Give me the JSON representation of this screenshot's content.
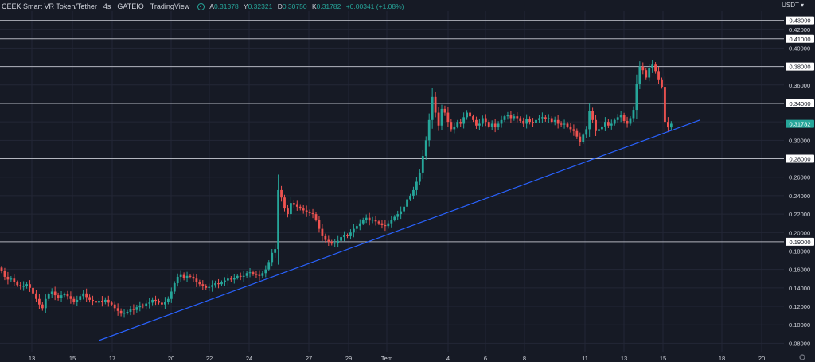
{
  "header": {
    "symbol": "CEEK Smart VR Token/Tether",
    "interval": "4s",
    "exchange": "GATEIO",
    "source": "TradingView",
    "open_label": "A",
    "open_value": "0.31378",
    "high_label": "Y",
    "high_value": "0.32321",
    "low_label": "D",
    "low_value": "0.30750",
    "close_label": "K",
    "close_value": "0.31782",
    "change": "+0.00341 (+1.08%)"
  },
  "currency_selector": "USDT ▾",
  "colors": {
    "background": "#161a25",
    "up": "#26a69a",
    "down": "#ef5350",
    "trendline": "#2962ff",
    "hline": "#b2b5be",
    "grid": "#232736",
    "text": "#d1d4dc"
  },
  "chart_data": {
    "type": "candlestick",
    "ylim": [
      0.07,
      0.44
    ],
    "y_ticks": [
      "0.08000",
      "0.10000",
      "0.12000",
      "0.14000",
      "0.16000",
      "0.18000",
      "0.20000",
      "0.22000",
      "0.24000",
      "0.26000",
      "0.28000",
      "0.30000",
      "0.32000",
      "0.34000",
      "0.36000",
      "0.38000",
      "0.40000",
      "0.42000"
    ],
    "x_ticks": [
      "13",
      "15",
      "17",
      "20",
      "22",
      "24",
      "27",
      "29",
      "Tem",
      "4",
      "6",
      "8",
      "11",
      "13",
      "15",
      "18",
      "20"
    ],
    "price_levels": [
      {
        "label": "0.43000",
        "value": 0.43
      },
      {
        "label": "0.41000",
        "value": 0.41
      },
      {
        "label": "0.38000",
        "value": 0.38
      },
      {
        "label": "0.34000",
        "value": 0.34
      },
      {
        "label": "0.28000",
        "value": 0.28
      },
      {
        "label": "0.19000",
        "value": 0.19
      }
    ],
    "last_price": {
      "label": "0.31782",
      "value": 0.31782
    },
    "trendline": {
      "start_index": 14,
      "start_value": 0.083,
      "end_index": 212,
      "end_value": 0.322
    },
    "closes": [
      0.158,
      0.152,
      0.149,
      0.15,
      0.146,
      0.143,
      0.142,
      0.142,
      0.144,
      0.14,
      0.134,
      0.128,
      0.122,
      0.118,
      0.128,
      0.133,
      0.136,
      0.132,
      0.129,
      0.132,
      0.133,
      0.131,
      0.128,
      0.125,
      0.127,
      0.131,
      0.134,
      0.13,
      0.127,
      0.126,
      0.124,
      0.126,
      0.125,
      0.127,
      0.124,
      0.122,
      0.118,
      0.115,
      0.112,
      0.113,
      0.114,
      0.117,
      0.116,
      0.119,
      0.121,
      0.12,
      0.123,
      0.124,
      0.127,
      0.126,
      0.124,
      0.122,
      0.125,
      0.128,
      0.136,
      0.145,
      0.152,
      0.154,
      0.151,
      0.153,
      0.152,
      0.15,
      0.146,
      0.144,
      0.142,
      0.14,
      0.141,
      0.143,
      0.145,
      0.144,
      0.146,
      0.148,
      0.15,
      0.149,
      0.151,
      0.153,
      0.152,
      0.153,
      0.156,
      0.157,
      0.155,
      0.154,
      0.153,
      0.156,
      0.16,
      0.168,
      0.178,
      0.182,
      0.246,
      0.238,
      0.226,
      0.22,
      0.232,
      0.23,
      0.228,
      0.226,
      0.224,
      0.222,
      0.221,
      0.22,
      0.214,
      0.204,
      0.196,
      0.192,
      0.19,
      0.188,
      0.189,
      0.191,
      0.195,
      0.197,
      0.196,
      0.2,
      0.204,
      0.207,
      0.21,
      0.214,
      0.216,
      0.213,
      0.214,
      0.212,
      0.21,
      0.208,
      0.207,
      0.21,
      0.214,
      0.217,
      0.22,
      0.223,
      0.228,
      0.236,
      0.24,
      0.246,
      0.255,
      0.265,
      0.283,
      0.3,
      0.322,
      0.347,
      0.33,
      0.316,
      0.334,
      0.33,
      0.32,
      0.312,
      0.315,
      0.32,
      0.318,
      0.325,
      0.33,
      0.326,
      0.322,
      0.316,
      0.318,
      0.324,
      0.32,
      0.315,
      0.318,
      0.314,
      0.318,
      0.322,
      0.326,
      0.327,
      0.324,
      0.326,
      0.324,
      0.321,
      0.318,
      0.323,
      0.32,
      0.319,
      0.322,
      0.324,
      0.325,
      0.323,
      0.324,
      0.32,
      0.322,
      0.318,
      0.317,
      0.318,
      0.315,
      0.312,
      0.31,
      0.304,
      0.298,
      0.306,
      0.312,
      0.332,
      0.322,
      0.31,
      0.312,
      0.315,
      0.32,
      0.316,
      0.318,
      0.322,
      0.325,
      0.327,
      0.321,
      0.318,
      0.324,
      0.333,
      0.361,
      0.38,
      0.376,
      0.368,
      0.378,
      0.382,
      0.375,
      0.366,
      0.358,
      0.32,
      0.314,
      0.318
    ]
  }
}
